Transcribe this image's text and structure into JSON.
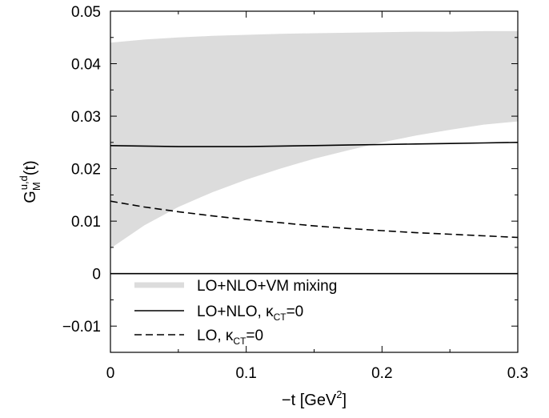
{
  "chart_data": {
    "type": "line",
    "xlabel": "−t [GeV²]",
    "ylabel": "G_M^{u,d}(t)",
    "ylabel_parts": {
      "base": "G",
      "sub": "M",
      "sup": "u,d",
      "arg": "(t)"
    },
    "xlabel_parts": {
      "prefix": "−t [GeV",
      "sup": "2",
      "suffix": "]"
    },
    "xlim": [
      0,
      0.3
    ],
    "ylim": [
      -0.015,
      0.05
    ],
    "x_ticks": [
      0,
      0.1,
      0.2,
      0.3
    ],
    "x_tick_labels": [
      "0",
      "0.1",
      "0.2",
      "0.3"
    ],
    "y_ticks": [
      -0.01,
      0,
      0.01,
      0.02,
      0.03,
      0.04,
      0.05
    ],
    "y_tick_labels": [
      "−0.01",
      "0",
      "0.01",
      "0.02",
      "0.03",
      "0.04",
      "0.05"
    ],
    "zero_line": true,
    "grid": false,
    "legend_position": "bottom-left",
    "x": [
      0,
      0.025,
      0.05,
      0.075,
      0.1,
      0.125,
      0.15,
      0.175,
      0.2,
      0.225,
      0.25,
      0.275,
      0.3
    ],
    "series": [
      {
        "name": "LO+NLO+VM mixing",
        "style": "band",
        "color": "#dcdcdc",
        "lower": [
          0.0048,
          0.0092,
          0.0127,
          0.0155,
          0.0179,
          0.02,
          0.0219,
          0.0235,
          0.025,
          0.0263,
          0.0274,
          0.0284,
          0.029
        ],
        "upper": [
          0.044,
          0.0446,
          0.045,
          0.0453,
          0.0455,
          0.0457,
          0.0458,
          0.0459,
          0.046,
          0.0461,
          0.0461,
          0.0462,
          0.0462
        ]
      },
      {
        "name": "LO+NLO, κ_CT=0",
        "label_parts": {
          "pre": "LO+NLO, κ",
          "sub": "CT",
          "post": "=0"
        },
        "style": "solid",
        "color": "#000000",
        "values": [
          0.0244,
          0.0243,
          0.0242,
          0.0242,
          0.0242,
          0.0243,
          0.0244,
          0.0245,
          0.0246,
          0.0247,
          0.0248,
          0.0249,
          0.025
        ]
      },
      {
        "name": "LO, κ_CT=0",
        "label_parts": {
          "pre": "LO, κ",
          "sub": "CT",
          "post": "=0"
        },
        "style": "dashed",
        "color": "#000000",
        "values": [
          0.0138,
          0.0127,
          0.0118,
          0.011,
          0.0103,
          0.0097,
          0.0091,
          0.0086,
          0.0082,
          0.0078,
          0.0075,
          0.0072,
          0.0069
        ]
      }
    ]
  }
}
